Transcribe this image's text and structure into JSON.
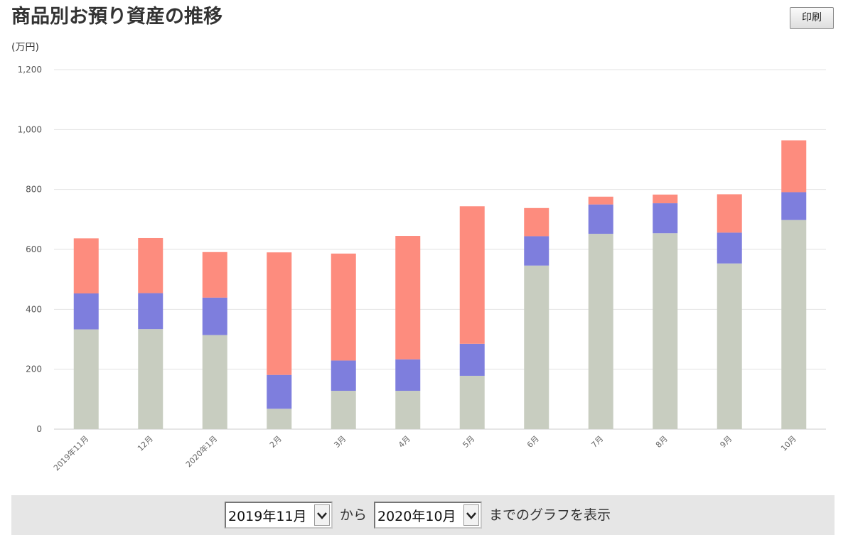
{
  "header": {
    "title": "商品別お預り資産の推移",
    "print_label": "印刷"
  },
  "chart_data": {
    "type": "bar",
    "stacked": true,
    "unit_label": "(万円)",
    "categories": [
      "2019年11月",
      "12月",
      "2020年1月",
      "2月",
      "3月",
      "4月",
      "5月",
      "6月",
      "7月",
      "8月",
      "9月",
      "10月"
    ],
    "series": [
      {
        "values": [
          333,
          334,
          314,
          68,
          128,
          128,
          178,
          546,
          652,
          654,
          553,
          698
        ],
        "color": "#c8cdc0"
      },
      {
        "values": [
          120,
          120,
          125,
          113,
          101,
          105,
          107,
          98,
          98,
          100,
          103,
          93
        ],
        "color": "#7e7edd"
      },
      {
        "values": [
          184,
          184,
          152,
          409,
          357,
          412,
          459,
          94,
          26,
          29,
          128,
          173
        ],
        "color": "#fd8c7e"
      }
    ],
    "y_ticks": [
      "0",
      "200",
      "400",
      "600",
      "800",
      "1,000",
      "1,200"
    ],
    "ylim": [
      0,
      1200
    ],
    "grid": true
  },
  "footer": {
    "from_value": "2019年11月",
    "from_text": "から",
    "to_value": "2020年10月",
    "to_text": "までのグラフを表示"
  }
}
